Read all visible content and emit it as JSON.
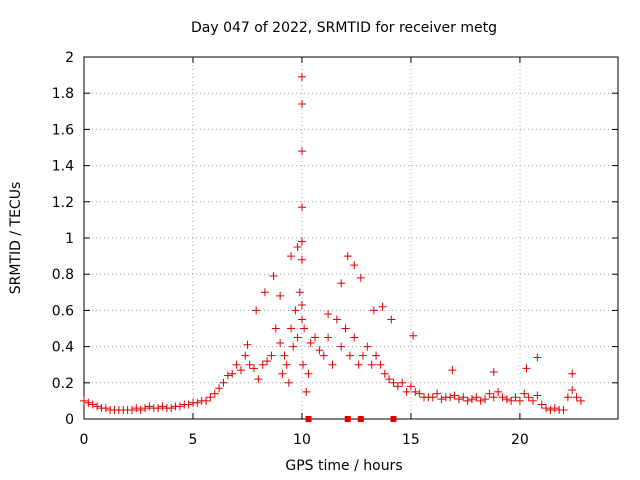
{
  "chart_data": {
    "type": "scatter",
    "title": "Day 047 of 2022, SRMTID for receiver metg",
    "xlabel": "GPS time / hours",
    "ylabel": "SRMTID / TECUs",
    "xlim": [
      0,
      24.5
    ],
    "ylim": [
      0,
      2
    ],
    "xticks": [
      0,
      5,
      10,
      15,
      20
    ],
    "yticks": [
      0,
      0.2,
      0.4,
      0.6,
      0.8,
      1,
      1.2,
      1.4,
      1.6,
      1.8,
      2
    ],
    "ytick_labels": [
      "0",
      "0.2",
      "0.4",
      "0.6",
      "0.8",
      "1",
      "1.2",
      "1.4",
      "1.6",
      "1.8",
      "2"
    ],
    "grid": true,
    "marker": "plus",
    "color": "#e00000",
    "series": [
      {
        "name": "SRMTID",
        "x": [
          0.0,
          0.2,
          0.4,
          0.6,
          0.8,
          1.0,
          1.2,
          1.4,
          1.6,
          1.8,
          2.0,
          2.2,
          2.4,
          2.6,
          2.8,
          3.0,
          3.2,
          3.4,
          3.6,
          3.8,
          4.0,
          4.2,
          4.4,
          4.6,
          4.8,
          5.0,
          5.2,
          5.4,
          5.6,
          5.8,
          6.0,
          6.2,
          6.4,
          6.6,
          6.8,
          7.0,
          7.2,
          7.4,
          7.6,
          7.8,
          8.0,
          8.2,
          8.4,
          8.6,
          8.8,
          9.0,
          9.1,
          9.2,
          9.3,
          9.4,
          9.5,
          9.6,
          9.7,
          9.8,
          9.9,
          10.0,
          10.05,
          10.1,
          10.2,
          10.3,
          10.4,
          10.6,
          10.8,
          11.0,
          11.2,
          11.4,
          11.6,
          11.8,
          12.0,
          12.2,
          12.4,
          12.6,
          12.8,
          13.0,
          13.2,
          13.4,
          13.6,
          13.8,
          14.0,
          14.2,
          14.4,
          14.6,
          14.8,
          15.0,
          15.2,
          15.4,
          15.6,
          15.8,
          16.0,
          16.2,
          16.4,
          16.6,
          16.8,
          17.0,
          17.2,
          17.4,
          17.6,
          17.8,
          18.0,
          18.2,
          18.4,
          18.6,
          18.8,
          19.0,
          19.2,
          19.4,
          19.6,
          19.8,
          20.0,
          20.2,
          20.4,
          20.6,
          20.8,
          21.0,
          21.2,
          21.4,
          21.6,
          21.8,
          22.0,
          22.2,
          22.4,
          22.6,
          22.8,
          7.5,
          7.9,
          8.3,
          8.7,
          9.0,
          9.5,
          9.8,
          10.0,
          10.0,
          10.0,
          10.0,
          10.0,
          10.0,
          10.0,
          11.2,
          11.8,
          12.1,
          12.4,
          12.7,
          13.3,
          13.7,
          14.1,
          15.1,
          16.9,
          18.8,
          20.3,
          20.8,
          22.4
        ],
        "y": [
          0.1,
          0.09,
          0.08,
          0.07,
          0.06,
          0.06,
          0.05,
          0.05,
          0.05,
          0.05,
          0.05,
          0.05,
          0.06,
          0.05,
          0.06,
          0.07,
          0.06,
          0.06,
          0.07,
          0.06,
          0.06,
          0.07,
          0.07,
          0.08,
          0.08,
          0.09,
          0.09,
          0.1,
          0.1,
          0.12,
          0.14,
          0.17,
          0.2,
          0.24,
          0.25,
          0.3,
          0.27,
          0.35,
          0.3,
          0.28,
          0.22,
          0.3,
          0.32,
          0.35,
          0.5,
          0.42,
          0.25,
          0.35,
          0.3,
          0.2,
          0.5,
          0.4,
          0.6,
          0.45,
          0.7,
          0.55,
          0.3,
          0.5,
          0.15,
          0.25,
          0.42,
          0.45,
          0.38,
          0.35,
          0.45,
          0.3,
          0.55,
          0.4,
          0.5,
          0.35,
          0.45,
          0.3,
          0.35,
          0.4,
          0.3,
          0.35,
          0.3,
          0.25,
          0.22,
          0.2,
          0.18,
          0.2,
          0.15,
          0.18,
          0.15,
          0.14,
          0.12,
          0.12,
          0.12,
          0.14,
          0.11,
          0.12,
          0.12,
          0.13,
          0.11,
          0.12,
          0.1,
          0.11,
          0.12,
          0.1,
          0.11,
          0.14,
          0.12,
          0.15,
          0.12,
          0.11,
          0.1,
          0.12,
          0.1,
          0.14,
          0.12,
          0.1,
          0.13,
          0.08,
          0.06,
          0.05,
          0.06,
          0.05,
          0.05,
          0.12,
          0.16,
          0.12,
          0.1,
          0.41,
          0.6,
          0.7,
          0.79,
          0.68,
          0.9,
          0.95,
          0.98,
          0.88,
          1.17,
          1.48,
          1.74,
          1.89,
          0.63,
          0.58,
          0.75,
          0.9,
          0.85,
          0.78,
          0.6,
          0.62,
          0.55,
          0.46,
          0.27,
          0.26,
          0.28,
          0.34,
          0.25
        ]
      },
      {
        "name": "square markers at zero",
        "marker": "square",
        "x": [
          10.3,
          12.1,
          12.7,
          14.2
        ],
        "y": [
          0,
          0,
          0,
          0
        ]
      }
    ]
  }
}
